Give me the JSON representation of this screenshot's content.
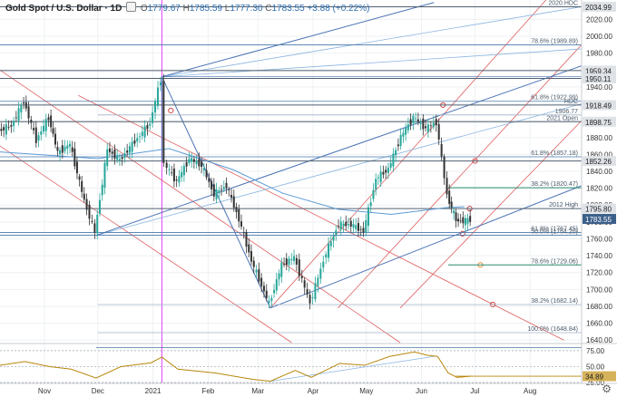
{
  "legend": {
    "symbol": "Gold Spot / U.S. Dollar · 1D",
    "open_label": "O",
    "open": "1779.67",
    "high_label": "H",
    "high": "1785.59",
    "low_label": "L",
    "low": "1777.30",
    "close_label": "C",
    "close": "1783.55",
    "change": "+3.88 (+0.22%)"
  },
  "colors": {
    "candle_up": "#26a69a",
    "candle_down": "#333333",
    "level_line": "#4a78ab",
    "channel": "#4b73b5",
    "pitchfork_red": "#e06060",
    "pitchfork_blue": "#8ab4e0",
    "fib_green": "#2a8c6e",
    "ma": "#5b9bd5",
    "rsi": "#b8860b",
    "date_line": "#e040fb",
    "price_tag": "#3c5f8a"
  },
  "chart_data": [
    {
      "type": "line",
      "title": "",
      "ylim": [
        1637,
        2043
      ],
      "x_range": [
        "2020-10-07",
        "2021-08-30"
      ],
      "y_ticks": [
        1640,
        1660,
        1680,
        1700,
        1720,
        1740,
        1760,
        1780,
        1800,
        1820,
        1840,
        1860,
        1880,
        1900,
        1920,
        1940,
        1960,
        1980,
        2000,
        2020
      ],
      "x_ticks": [
        {
          "date": "2020-11-01",
          "label": "Nov"
        },
        {
          "date": "2020-12-01",
          "label": "Dec"
        },
        {
          "date": "2021-01-01",
          "label": "2021"
        },
        {
          "date": "2021-02-01",
          "label": "Feb"
        },
        {
          "date": "2021-03-01",
          "label": "Mar"
        },
        {
          "date": "2021-04-01",
          "label": "Apr"
        },
        {
          "date": "2021-05-01",
          "label": "May"
        },
        {
          "date": "2021-06-01",
          "label": "Jun"
        },
        {
          "date": "2021-07-01",
          "label": "Jul"
        },
        {
          "date": "2021-08-01",
          "label": "Aug"
        }
      ],
      "closes": [
        {
          "date": "2020-10-07",
          "value": 1888
        },
        {
          "date": "2020-10-14",
          "value": 1894
        },
        {
          "date": "2020-10-21",
          "value": 1923
        },
        {
          "date": "2020-10-28",
          "value": 1877
        },
        {
          "date": "2020-11-04",
          "value": 1904
        },
        {
          "date": "2020-11-09",
          "value": 1862
        },
        {
          "date": "2020-11-16",
          "value": 1872
        },
        {
          "date": "2020-11-24",
          "value": 1805
        },
        {
          "date": "2020-11-30",
          "value": 1768
        },
        {
          "date": "2020-12-07",
          "value": 1866
        },
        {
          "date": "2020-12-14",
          "value": 1853
        },
        {
          "date": "2020-12-21",
          "value": 1872
        },
        {
          "date": "2020-12-31",
          "value": 1897
        },
        {
          "date": "2021-01-06",
          "value": 1949
        },
        {
          "date": "2021-01-08",
          "value": 1849
        },
        {
          "date": "2021-01-15",
          "value": 1828
        },
        {
          "date": "2021-01-22",
          "value": 1855
        },
        {
          "date": "2021-01-29",
          "value": 1847
        },
        {
          "date": "2021-02-05",
          "value": 1813
        },
        {
          "date": "2021-02-12",
          "value": 1823
        },
        {
          "date": "2021-02-19",
          "value": 1783
        },
        {
          "date": "2021-02-26",
          "value": 1734
        },
        {
          "date": "2021-03-08",
          "value": 1683
        },
        {
          "date": "2021-03-15",
          "value": 1729
        },
        {
          "date": "2021-03-22",
          "value": 1738
        },
        {
          "date": "2021-03-31",
          "value": 1684
        },
        {
          "date": "2021-04-09",
          "value": 1744
        },
        {
          "date": "2021-04-16",
          "value": 1777
        },
        {
          "date": "2021-04-23",
          "value": 1777
        },
        {
          "date": "2021-04-30",
          "value": 1769
        },
        {
          "date": "2021-05-07",
          "value": 1831
        },
        {
          "date": "2021-05-14",
          "value": 1843
        },
        {
          "date": "2021-05-21",
          "value": 1881
        },
        {
          "date": "2021-05-28",
          "value": 1904
        },
        {
          "date": "2021-06-04",
          "value": 1891
        },
        {
          "date": "2021-06-10",
          "value": 1898
        },
        {
          "date": "2021-06-16",
          "value": 1812
        },
        {
          "date": "2021-06-21",
          "value": 1782
        },
        {
          "date": "2021-06-25",
          "value": 1781
        },
        {
          "date": "2021-06-29",
          "value": 1783
        }
      ],
      "moving_average": [
        {
          "date": "2020-10-07",
          "value": 1863
        },
        {
          "date": "2020-12-01",
          "value": 1855
        },
        {
          "date": "2021-01-10",
          "value": 1867
        },
        {
          "date": "2021-02-15",
          "value": 1842
        },
        {
          "date": "2021-03-15",
          "value": 1814
        },
        {
          "date": "2021-04-15",
          "value": 1795
        },
        {
          "date": "2021-05-15",
          "value": 1789
        },
        {
          "date": "2021-06-15",
          "value": 1797
        },
        {
          "date": "2021-06-25",
          "value": 1798
        }
      ],
      "levels": [
        {
          "value": 2034.99,
          "label": "2020 HDC",
          "tag": "2034.99",
          "style": "dark"
        },
        {
          "value": 1989.89,
          "label": "78.6% (1989.89)",
          "style": "blue"
        },
        {
          "value": 1959.34,
          "tag": "1959.34",
          "style": "dark"
        },
        {
          "value": 1950.11,
          "tag": "1950.11",
          "style": "dark"
        },
        {
          "value": 1922.99,
          "label": "61.8% (1922.99)",
          "style": "blue"
        },
        {
          "value": 1918.49,
          "label": "HDC",
          "tag": "1918.49",
          "style": "dark"
        },
        {
          "value": 1906.77,
          "label": "1906.77",
          "style": "faint"
        },
        {
          "value": 1898.75,
          "label": "2021 Open",
          "tag": "1898.75",
          "style": "dark"
        },
        {
          "value": 1857.18,
          "label": "61.8% (1857.18)",
          "style": "blue"
        },
        {
          "value": 1852.26,
          "tag": "1852.26",
          "style": "dark"
        },
        {
          "value": 1820.47,
          "label": "38.2% (1820.47)",
          "style": "green"
        },
        {
          "value": 1795.8,
          "label": "2012 High",
          "tag": "1795.80",
          "style": "dark"
        },
        {
          "value": 1767.45,
          "label": "61.8% (1767.45)",
          "style": "blue"
        },
        {
          "value": 1764.2,
          "label": "50.0% (1764.20)",
          "style": "blue"
        },
        {
          "value": 1729.06,
          "label": "78.6% (1729.06)",
          "style": "green"
        },
        {
          "value": 1682.14,
          "label": "38.2% (1682.14)",
          "style": "faint"
        },
        {
          "value": 1648.84,
          "label": "100.0% (1648.84)",
          "style": "faint"
        }
      ],
      "current_price": {
        "value": 1783.55,
        "tag": "1783.55"
      },
      "date_marker": "2021-01-06"
    },
    {
      "type": "line",
      "title": "",
      "ylim": [
        25,
        82
      ],
      "y_ticks": [
        75,
        50,
        25
      ],
      "y_tick_labels": [
        "75.00",
        "50.00",
        "25.00"
      ],
      "values": [
        {
          "date": "2020-10-07",
          "value": 52
        },
        {
          "date": "2020-10-21",
          "value": 58
        },
        {
          "date": "2020-11-04",
          "value": 50
        },
        {
          "date": "2020-11-16",
          "value": 46
        },
        {
          "date": "2020-11-30",
          "value": 32
        },
        {
          "date": "2020-12-14",
          "value": 50
        },
        {
          "date": "2020-12-31",
          "value": 56
        },
        {
          "date": "2021-01-06",
          "value": 65
        },
        {
          "date": "2021-01-15",
          "value": 46
        },
        {
          "date": "2021-02-05",
          "value": 40
        },
        {
          "date": "2021-02-26",
          "value": 30
        },
        {
          "date": "2021-03-08",
          "value": 27
        },
        {
          "date": "2021-03-22",
          "value": 44
        },
        {
          "date": "2021-03-31",
          "value": 33
        },
        {
          "date": "2021-04-16",
          "value": 55
        },
        {
          "date": "2021-04-30",
          "value": 52
        },
        {
          "date": "2021-05-14",
          "value": 66
        },
        {
          "date": "2021-05-28",
          "value": 73
        },
        {
          "date": "2021-06-04",
          "value": 68
        },
        {
          "date": "2021-06-10",
          "value": 66
        },
        {
          "date": "2021-06-16",
          "value": 40
        },
        {
          "date": "2021-06-21",
          "value": 33
        },
        {
          "date": "2021-06-29",
          "value": 35
        }
      ],
      "current": {
        "value": 34.89,
        "tag": "34.89"
      }
    }
  ]
}
